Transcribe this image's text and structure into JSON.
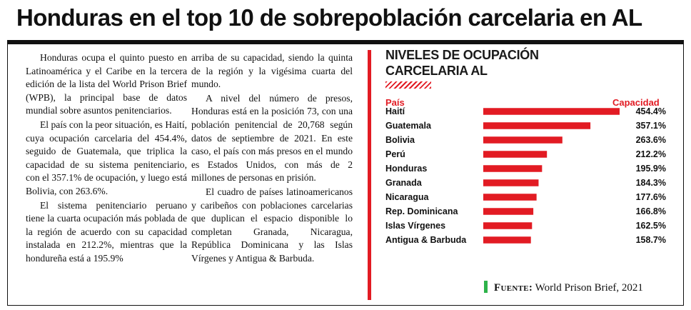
{
  "headline": "Honduras en el top 10 de sobrepoblación carcelaria en AL",
  "article": {
    "column1": [
      "Honduras ocupa el quinto puesto en Latinoamérica y el Caribe en la tercera edición de la lista del World Prison Brief (WPB), la principal base de datos mundial sobre asuntos penitenciarios.",
      "El país con la peor situación, es Haití, cuya ocupación carcelaria del 454.4%, seguido de Guatemala, que triplica la capacidad de su sistema penitenciario, con el 357.1% de ocupación, y luego está Bolivia, con 263.6%.",
      "El sistema penitenciario peruano tiene la cuarta ocupación más poblada de la región de acuerdo con su capacidad instalada en 212.2%, mientras que la hondureña está a 195.9%"
    ],
    "column2": [
      "arriba de su capacidad, siendo la quinta de la región y la vigésima cuarta del mundo.",
      "A nivel del número de presos, Honduras está en la posición 73, con una población penitencial de 20,768 según datos de septiembre de 2021. En este caso, el país con más presos en el mundo es Estados Unidos, con más de 2 millones de personas en prisión.",
      "El cuadro de países latinoamericanos y caribeños con poblaciones carcelarias que duplican el espacio disponible lo completan Granada, Nicaragua, República Dominicana y las Islas Vírgenes y Antigua & Barbuda."
    ]
  },
  "panel": {
    "title_line1": "NIVELES DE OCUPACIÓN",
    "title_line2": "CARCELARIA AL",
    "col_country": "País",
    "col_capacity": "Capacidad"
  },
  "source": {
    "label": "Fuente:",
    "text": "World Prison Brief, 2021"
  },
  "colors": {
    "accent_red": "#e21b23",
    "source_green": "#2db34a",
    "text": "#111111"
  },
  "chart_data": {
    "type": "bar",
    "orientation": "horizontal",
    "categories": [
      "Haití",
      "Guatemala",
      "Bolivia",
      "Perú",
      "Honduras",
      "Granada",
      "Nicaragua",
      "Rep. Dominicana",
      "Islas Vírgenes",
      "Antigua & Barbuda"
    ],
    "values": [
      454.4,
      357.1,
      263.6,
      212.2,
      195.9,
      184.3,
      177.6,
      166.8,
      162.5,
      158.7
    ],
    "value_labels": [
      "454.4%",
      "357.1%",
      "263.6%",
      "212.2%",
      "195.9%",
      "184.3%",
      "177.6%",
      "166.8%",
      "162.5%",
      "158.7%"
    ],
    "title": "NIVELES DE OCUPACIÓN CARCELARIA AL",
    "xlabel": "Capacidad",
    "ylabel": "País",
    "grid": false,
    "legend": "none"
  }
}
